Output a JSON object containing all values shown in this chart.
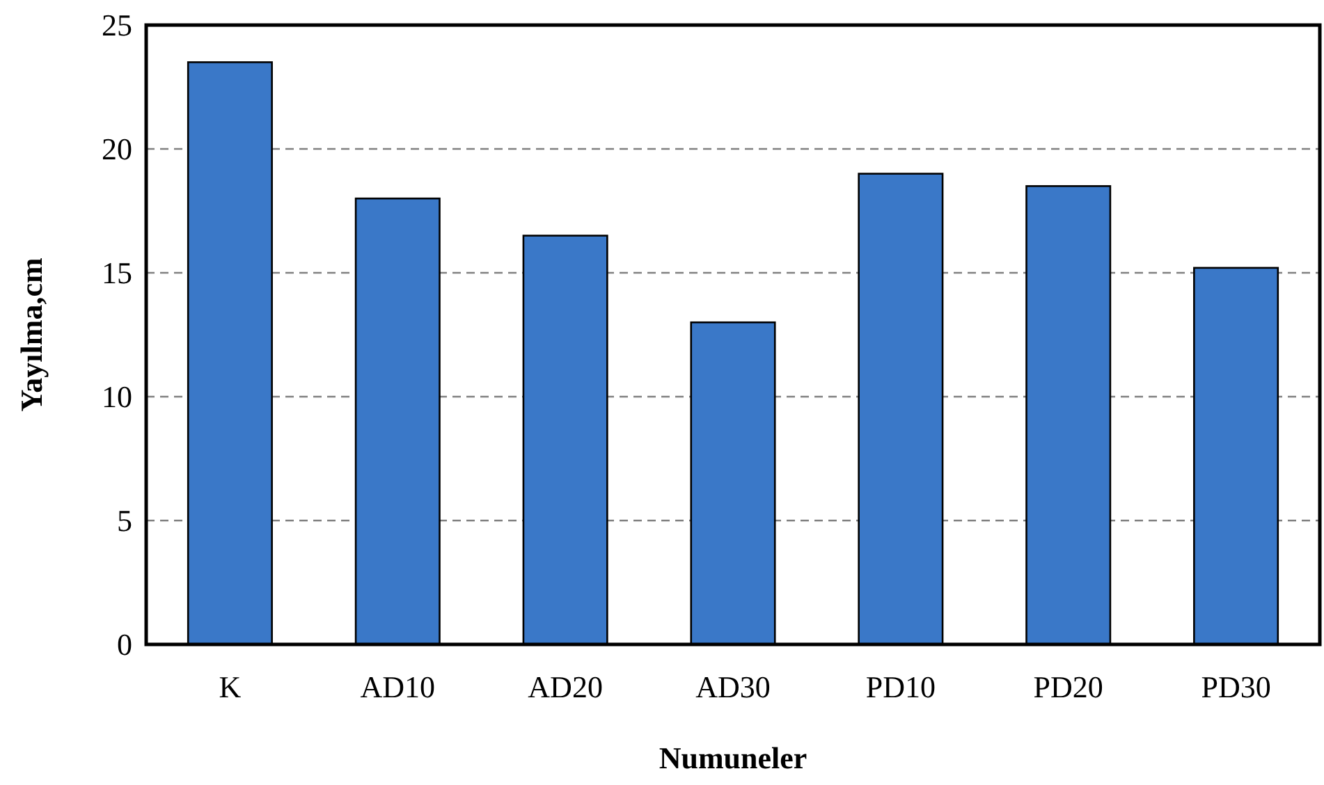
{
  "chart_data": {
    "type": "bar",
    "xlabel": "Numuneler",
    "ylabel": "Yayılma,cm",
    "categories": [
      "K",
      "AD10",
      "AD20",
      "AD30",
      "PD10",
      "PD20",
      "PD30"
    ],
    "values": [
      23.5,
      18,
      16.5,
      13,
      19,
      18.5,
      15.2
    ],
    "color": "#3a78c8",
    "ylim": [
      0,
      25
    ],
    "yticks": [
      0,
      5,
      10,
      15,
      20,
      25
    ],
    "grid": "y"
  }
}
